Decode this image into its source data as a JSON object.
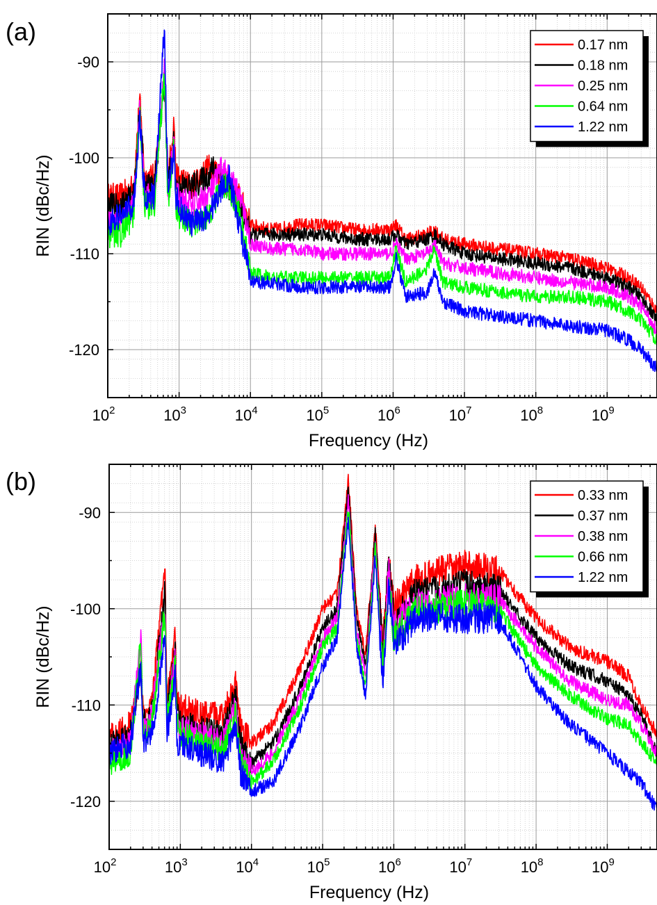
{
  "chart_data": [
    {
      "panel_label": "(a)",
      "type": "line",
      "xlabel": "Frequency (Hz)",
      "ylabel": "RIN (dBc/Hz)",
      "xscale": "log",
      "xlim": [
        100,
        5000000000
      ],
      "ylim": [
        -125,
        -85
      ],
      "xticks": [
        {
          "exp": "2",
          "value": 100
        },
        {
          "exp": "3",
          "value": 1000
        },
        {
          "exp": "4",
          "value": 10000
        },
        {
          "exp": "5",
          "value": 100000
        },
        {
          "exp": "6",
          "value": 1000000
        },
        {
          "exp": "7",
          "value": 10000000
        },
        {
          "exp": "8",
          "value": 100000000
        },
        {
          "exp": "9",
          "value": 1000000000
        }
      ],
      "tick_base": "10",
      "yticks": [
        {
          "label": "-90",
          "value": -90
        },
        {
          "label": "-100",
          "value": -100
        },
        {
          "label": "-110",
          "value": -110
        },
        {
          "label": "-120",
          "value": -120
        }
      ],
      "grid": true,
      "legend_position": "top-right",
      "series": [
        {
          "name": "0.17 nm",
          "color": "#ff0000",
          "x": [
            100,
            150,
            230,
            280,
            330,
            450,
            620,
            700,
            850,
            900,
            1000,
            1500,
            2500,
            3000,
            4000,
            5000,
            7000,
            9000,
            10000,
            20000,
            50000,
            100000,
            300000,
            900000,
            1100000,
            1500000,
            3000000,
            3800000,
            5000000,
            10000000,
            30000000,
            100000000,
            300000000,
            1000000000,
            2000000000,
            3000000000,
            5000000000
          ],
          "y": [
            -104,
            -104,
            -103,
            -94,
            -102,
            -102,
            -92,
            -102,
            -96,
            -102,
            -102,
            -103,
            -101,
            -101,
            -102,
            -103,
            -104,
            -106,
            -107,
            -107.5,
            -107,
            -107,
            -107.5,
            -107.5,
            -107,
            -108.5,
            -108,
            -107.5,
            -108.5,
            -109,
            -109.5,
            -110,
            -110.5,
            -111.5,
            -112.5,
            -113.5,
            -116
          ]
        },
        {
          "name": "0.18 nm",
          "color": "#000000",
          "x": [
            100,
            150,
            230,
            280,
            330,
            450,
            620,
            700,
            850,
            900,
            1000,
            1500,
            2500,
            3000,
            4000,
            5000,
            7000,
            9000,
            10000,
            20000,
            50000,
            100000,
            300000,
            900000,
            1100000,
            1500000,
            3000000,
            3800000,
            5000000,
            10000000,
            30000000,
            100000000,
            300000000,
            1000000000,
            2000000000,
            3000000000,
            5000000000
          ],
          "y": [
            -105,
            -105,
            -104,
            -95,
            -103,
            -103,
            -92,
            -103,
            -98,
            -103,
            -103,
            -103,
            -102,
            -101,
            -102,
            -103,
            -105,
            -107,
            -108,
            -108,
            -108,
            -108,
            -108.5,
            -108.5,
            -108,
            -109,
            -108.5,
            -108,
            -109,
            -110,
            -110.5,
            -111,
            -111.5,
            -112.5,
            -113.5,
            -114.5,
            -117
          ]
        },
        {
          "name": "0.25 nm",
          "color": "#ff00ff",
          "x": [
            100,
            150,
            230,
            280,
            330,
            450,
            620,
            700,
            850,
            900,
            1000,
            1500,
            2500,
            3000,
            4000,
            5000,
            7000,
            9000,
            10000,
            20000,
            50000,
            100000,
            300000,
            900000,
            1100000,
            1500000,
            3000000,
            3800000,
            5000000,
            10000000,
            30000000,
            100000000,
            300000000,
            1000000000,
            2000000000,
            3000000000,
            5000000000
          ],
          "y": [
            -107,
            -107,
            -105,
            -95,
            -104,
            -104,
            -91,
            -104,
            -98,
            -104,
            -104,
            -105,
            -104,
            -103,
            -101,
            -102,
            -104,
            -107,
            -109,
            -109.5,
            -109.5,
            -110,
            -110,
            -110,
            -109,
            -110.5,
            -110,
            -109,
            -111,
            -111.5,
            -112,
            -112.5,
            -113,
            -113.5,
            -114.5,
            -115.5,
            -118
          ]
        },
        {
          "name": "0.64 nm",
          "color": "#00ff00",
          "x": [
            100,
            150,
            230,
            280,
            330,
            450,
            620,
            700,
            850,
            900,
            1000,
            1500,
            2500,
            3000,
            4000,
            5000,
            7000,
            9000,
            10000,
            20000,
            50000,
            100000,
            300000,
            900000,
            1100000,
            1500000,
            3000000,
            3800000,
            5000000,
            10000000,
            30000000,
            100000000,
            300000000,
            1000000000,
            2000000000,
            3000000000,
            5000000000
          ],
          "y": [
            -108,
            -108,
            -106,
            -95,
            -105,
            -105,
            -91,
            -105,
            -99,
            -105,
            -106,
            -107,
            -106,
            -105,
            -103,
            -103,
            -106,
            -110,
            -112,
            -112.5,
            -112.5,
            -112.5,
            -112.5,
            -112.5,
            -109.5,
            -113,
            -111.5,
            -109.5,
            -113,
            -113.5,
            -114,
            -114.5,
            -114.5,
            -115,
            -116,
            -117,
            -119
          ]
        },
        {
          "name": "1.22 nm",
          "color": "#0000ff",
          "x": [
            100,
            150,
            230,
            280,
            330,
            450,
            620,
            700,
            850,
            900,
            1000,
            1500,
            2500,
            3000,
            4000,
            5000,
            7000,
            9000,
            10000,
            20000,
            50000,
            100000,
            300000,
            900000,
            1100000,
            1500000,
            3000000,
            3800000,
            5000000,
            10000000,
            30000000,
            100000000,
            300000000,
            1000000000,
            2000000000,
            3000000000,
            5000000000
          ],
          "y": [
            -107,
            -106,
            -105,
            -96,
            -104,
            -104,
            -86.5,
            -104,
            -99,
            -104,
            -105,
            -107,
            -106,
            -105,
            -103,
            -102,
            -107,
            -111,
            -113,
            -113,
            -113.5,
            -113.5,
            -113.5,
            -113.5,
            -110.5,
            -114.5,
            -114,
            -112,
            -115,
            -116,
            -116.5,
            -117,
            -117.5,
            -118,
            -119,
            -120,
            -122
          ]
        }
      ]
    },
    {
      "panel_label": "(b)",
      "type": "line",
      "xlabel": "Frequency (Hz)",
      "ylabel": "RIN (dBc/Hz)",
      "xscale": "log",
      "xlim": [
        100,
        5000000000
      ],
      "ylim": [
        -125,
        -85
      ],
      "xticks": [
        {
          "exp": "2",
          "value": 100
        },
        {
          "exp": "3",
          "value": 1000
        },
        {
          "exp": "4",
          "value": 10000
        },
        {
          "exp": "5",
          "value": 100000
        },
        {
          "exp": "6",
          "value": 1000000
        },
        {
          "exp": "7",
          "value": 10000000
        },
        {
          "exp": "8",
          "value": 100000000
        },
        {
          "exp": "9",
          "value": 1000000000
        }
      ],
      "tick_base": "10",
      "yticks": [
        {
          "label": "-90",
          "value": -90
        },
        {
          "label": "-100",
          "value": -100
        },
        {
          "label": "-110",
          "value": -110
        },
        {
          "label": "-120",
          "value": -120
        }
      ],
      "grid": true,
      "legend_position": "top-right",
      "series": [
        {
          "name": "0.33 nm",
          "color": "#ff0000",
          "x": [
            100,
            200,
            280,
            300,
            400,
            610,
            650,
            850,
            900,
            1000,
            2000,
            4000,
            6000,
            7000,
            10000,
            20000,
            50000,
            100000,
            160000,
            230000,
            300000,
            400000,
            550000,
            700000,
            850000,
            1000000,
            2000000,
            5000000,
            10000000,
            30000000,
            100000000,
            300000000,
            1000000000,
            2000000000,
            3000000000,
            5000000000
          ],
          "y": [
            -113,
            -112,
            -106,
            -111,
            -110,
            -95.5,
            -110,
            -102.5,
            -110,
            -110,
            -111,
            -111,
            -107.5,
            -112,
            -114,
            -112,
            -106,
            -100,
            -98.5,
            -86.5,
            -100,
            -105,
            -91.5,
            -104,
            -94,
            -100,
            -97,
            -96,
            -95.5,
            -96,
            -101,
            -104,
            -105.5,
            -107,
            -110,
            -113
          ]
        },
        {
          "name": "0.37 nm",
          "color": "#000000",
          "x": [
            100,
            200,
            280,
            300,
            400,
            610,
            650,
            850,
            900,
            1000,
            2000,
            4000,
            6000,
            7000,
            10000,
            20000,
            50000,
            100000,
            160000,
            230000,
            300000,
            400000,
            550000,
            700000,
            850000,
            1000000,
            2000000,
            5000000,
            10000000,
            30000000,
            100000000,
            300000000,
            1000000000,
            2000000000,
            3000000000,
            5000000000
          ],
          "y": [
            -114,
            -113,
            -106,
            -112,
            -111,
            -98,
            -111,
            -104,
            -111,
            -112,
            -112.5,
            -113,
            -109,
            -114,
            -116,
            -114,
            -108,
            -102,
            -100,
            -87.5,
            -101,
            -106,
            -92,
            -105,
            -95,
            -101,
            -98.5,
            -98,
            -97.5,
            -98,
            -103,
            -106,
            -107.5,
            -109,
            -111,
            -115
          ]
        },
        {
          "name": "0.38 nm",
          "color": "#ff00ff",
          "x": [
            100,
            200,
            280,
            300,
            400,
            610,
            650,
            850,
            900,
            1000,
            2000,
            4000,
            6000,
            7000,
            10000,
            20000,
            50000,
            100000,
            160000,
            230000,
            300000,
            400000,
            550000,
            700000,
            850000,
            1000000,
            2000000,
            5000000,
            10000000,
            30000000,
            100000000,
            300000000,
            1000000000,
            2000000000,
            3000000000,
            5000000000
          ],
          "y": [
            -115,
            -114,
            -103,
            -113,
            -111,
            -100,
            -112,
            -105,
            -112,
            -112.5,
            -113,
            -114,
            -110,
            -115,
            -117,
            -115,
            -109,
            -103,
            -101,
            -88.5,
            -102,
            -107,
            -93,
            -106,
            -96,
            -102,
            -99.5,
            -99,
            -99,
            -99,
            -104,
            -107.5,
            -109.5,
            -110,
            -112,
            -115
          ]
        },
        {
          "name": "0.66 nm",
          "color": "#00ff00",
          "x": [
            100,
            200,
            280,
            300,
            400,
            610,
            650,
            850,
            900,
            1000,
            2000,
            4000,
            6000,
            7000,
            10000,
            20000,
            50000,
            100000,
            160000,
            230000,
            300000,
            400000,
            550000,
            700000,
            850000,
            1000000,
            2000000,
            5000000,
            10000000,
            30000000,
            100000000,
            300000000,
            1000000000,
            2000000000,
            3000000000,
            5000000000
          ],
          "y": [
            -116,
            -115,
            -103,
            -113,
            -112,
            -100,
            -112,
            -106,
            -112,
            -113,
            -114,
            -115,
            -111,
            -116,
            -118,
            -116,
            -110,
            -104,
            -102,
            -89.5,
            -103,
            -108,
            -93.5,
            -107,
            -97,
            -103,
            -100,
            -100,
            -99.5,
            -100,
            -106,
            -109,
            -111.5,
            -112,
            -114,
            -116
          ]
        },
        {
          "name": "1.22 nm",
          "color": "#0000ff",
          "x": [
            100,
            200,
            280,
            300,
            400,
            610,
            650,
            850,
            900,
            1000,
            2000,
            4000,
            6000,
            7000,
            10000,
            20000,
            50000,
            100000,
            160000,
            230000,
            300000,
            400000,
            550000,
            700000,
            850000,
            1000000,
            2000000,
            5000000,
            10000000,
            30000000,
            100000000,
            300000000,
            1000000000,
            2000000000,
            3000000000,
            5000000000
          ],
          "y": [
            -115,
            -114,
            -106,
            -114,
            -113,
            -103,
            -113,
            -107,
            -114,
            -114,
            -115,
            -116,
            -112,
            -117,
            -119,
            -118,
            -112,
            -106,
            -103,
            -90.5,
            -104,
            -109,
            -94.5,
            -108,
            -98,
            -104,
            -101,
            -101,
            -101,
            -101,
            -108,
            -112,
            -115,
            -117,
            -118,
            -121
          ]
        }
      ]
    }
  ]
}
